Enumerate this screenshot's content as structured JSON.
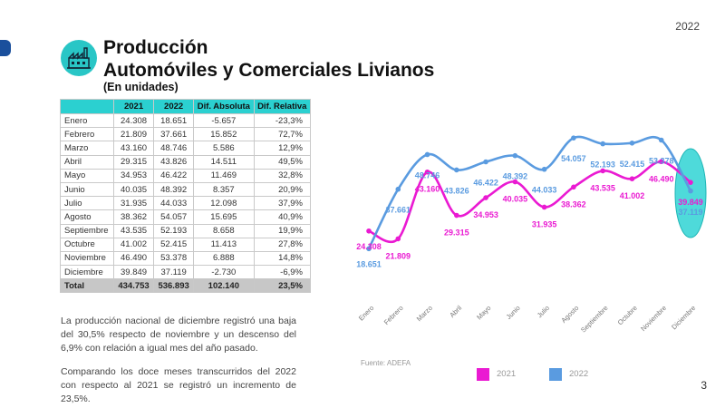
{
  "header": {
    "year": "2022",
    "title_line1": "Producción",
    "title_line2": "Automóviles y Comerciales Livianos",
    "subtitle": "(En unidades)",
    "page_number": "3",
    "logo_icon": "factory-icon"
  },
  "table": {
    "columns": [
      "",
      "2021",
      "2022",
      "Dif. Absoluta",
      "Dif. Relativa"
    ],
    "rows": [
      {
        "month": "Enero",
        "y2021": "24.308",
        "y2022": "18.651",
        "abs": "-5.657",
        "rel": "-23,3%"
      },
      {
        "month": "Febrero",
        "y2021": "21.809",
        "y2022": "37.661",
        "abs": "15.852",
        "rel": "72,7%"
      },
      {
        "month": "Marzo",
        "y2021": "43.160",
        "y2022": "48.746",
        "abs": "5.586",
        "rel": "12,9%"
      },
      {
        "month": "Abril",
        "y2021": "29.315",
        "y2022": "43.826",
        "abs": "14.511",
        "rel": "49,5%"
      },
      {
        "month": "Mayo",
        "y2021": "34.953",
        "y2022": "46.422",
        "abs": "11.469",
        "rel": "32,8%"
      },
      {
        "month": "Junio",
        "y2021": "40.035",
        "y2022": "48.392",
        "abs": "8.357",
        "rel": "20,9%"
      },
      {
        "month": "Julio",
        "y2021": "31.935",
        "y2022": "44.033",
        "abs": "12.098",
        "rel": "37,9%"
      },
      {
        "month": "Agosto",
        "y2021": "38.362",
        "y2022": "54.057",
        "abs": "15.695",
        "rel": "40,9%"
      },
      {
        "month": "Septiembre",
        "y2021": "43.535",
        "y2022": "52.193",
        "abs": "8.658",
        "rel": "19,9%"
      },
      {
        "month": "Octubre",
        "y2021": "41.002",
        "y2022": "52.415",
        "abs": "11.413",
        "rel": "27,8%"
      },
      {
        "month": "Noviembre",
        "y2021": "46.490",
        "y2022": "53.378",
        "abs": "6.888",
        "rel": "14,8%"
      },
      {
        "month": "Diciembre",
        "y2021": "39.849",
        "y2022": "37.119",
        "abs": "-2.730",
        "rel": "-6,9%"
      }
    ],
    "total": {
      "month": "Total",
      "y2021": "434.753",
      "y2022": "536.893",
      "abs": "102.140",
      "rel": "23,5%"
    }
  },
  "text": {
    "paragraph1": "La producción nacional de diciembre registró una baja del 30,5% respecto de noviembre y un descenso del 6,9% con relación a igual mes del año pasado.",
    "paragraph2": "Comparando los doce meses transcurridos del 2022 con respecto al 2021 se registró un incremento de 23,5%."
  },
  "source": "Fuente: ADEFA",
  "colors": {
    "s2021": "#ea1ad2",
    "s2022": "#5a9be0",
    "highlight": "#2fd3d3",
    "header": "#2bd0d0"
  },
  "chart_data": {
    "type": "line",
    "categories": [
      "Enero",
      "Febrero",
      "Marzo",
      "Abril",
      "Mayo",
      "Junio",
      "Julio",
      "Agosto",
      "Septiembre",
      "Octubre",
      "Noviembre",
      "Diciembre"
    ],
    "series": [
      {
        "name": "2021",
        "values": [
          24308,
          21809,
          43160,
          29315,
          34953,
          40035,
          31935,
          38362,
          43535,
          41002,
          46490,
          39849
        ],
        "labels": [
          "24.308",
          "21.809",
          "43.160",
          "29.315",
          "34.953",
          "40.035",
          "31.935",
          "38.362",
          "43.535",
          "41.002",
          "46.490",
          "39.849"
        ]
      },
      {
        "name": "2022",
        "values": [
          18651,
          37661,
          48746,
          43826,
          46422,
          48392,
          44033,
          54057,
          52193,
          52415,
          53378,
          37119
        ],
        "labels": [
          "18.651",
          "37.661",
          "48.746",
          "43.826",
          "46.422",
          "48.392",
          "44.033",
          "54.057",
          "52.193",
          "52.415",
          "53.378",
          "37.119"
        ]
      }
    ],
    "title": "",
    "xlabel": "",
    "ylabel": "",
    "ylim": [
      17000,
      57000
    ],
    "legend": "bottom",
    "highlight": "Diciembre"
  }
}
